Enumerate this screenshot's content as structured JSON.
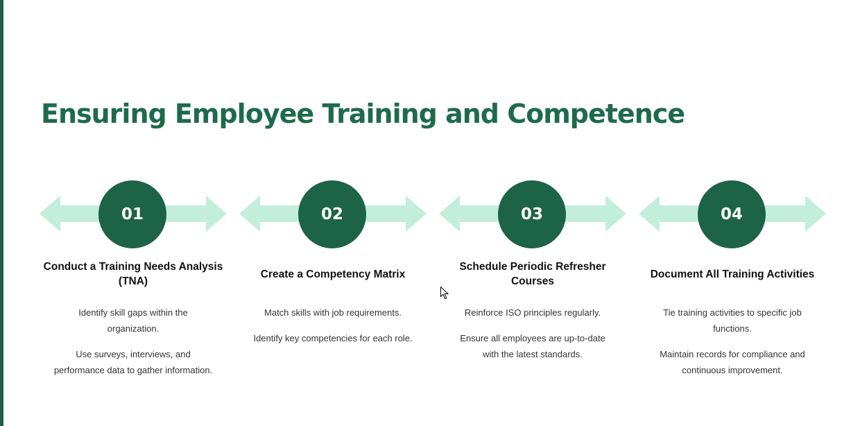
{
  "title": "Ensuring Employee Training and Competence",
  "colors": {
    "title": "#1e6b4c",
    "circle": "#1d6347",
    "arrow": "#c3eedc",
    "edge": "#1f5f45"
  },
  "steps": [
    {
      "number": "01",
      "title": "Conduct a Training Needs Analysis (TNA)",
      "bullets": [
        "Identify skill gaps within the organization.",
        "Use surveys, interviews, and performance data to gather information."
      ]
    },
    {
      "number": "02",
      "title": "Create a Competency Matrix",
      "bullets": [
        "Match skills with job requirements.",
        "Identify key competencies for each role."
      ]
    },
    {
      "number": "03",
      "title": "Schedule Periodic Refresher Courses",
      "bullets": [
        "Reinforce ISO principles regularly.",
        "Ensure all employees are up-to-date with the latest standards."
      ]
    },
    {
      "number": "04",
      "title": "Document All Training Activities",
      "bullets": [
        "Tie training activities to specific job functions.",
        "Maintain records for compliance and continuous improvement."
      ]
    }
  ],
  "icons": {
    "cursor": "mouse-pointer-icon"
  }
}
